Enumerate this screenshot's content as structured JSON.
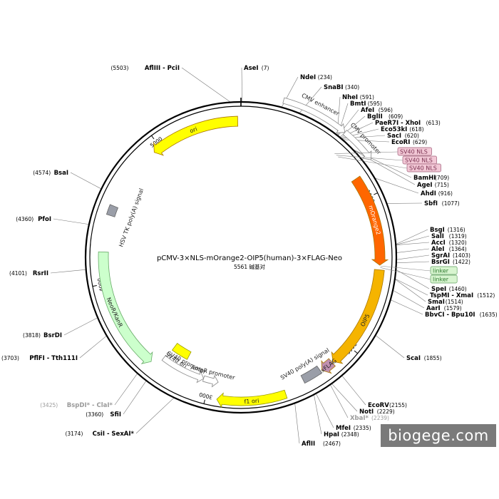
{
  "center": {
    "title": "pCMV-3×NLS-mOrange2-OIP5(human)-3×FLAG-Neo",
    "size": "5561 碱基对"
  },
  "total_bp": 5561,
  "ticks": [
    {
      "bp": 1000,
      "label": "1000"
    },
    {
      "bp": 2000,
      "label": "2000"
    },
    {
      "bp": 3000,
      "label": "3000"
    },
    {
      "bp": 4000,
      "label": "4000"
    },
    {
      "bp": 5000,
      "label": "5000"
    }
  ],
  "features": [
    {
      "id": "cmv-enhancer",
      "label": "CMV enhancer",
      "start": 235,
      "end": 614,
      "style": "open",
      "color": "#ffffff"
    },
    {
      "id": "cmv-promoter",
      "label": "CMV promoter",
      "start": 614,
      "end": 820,
      "style": "open",
      "color": "#ffffff"
    },
    {
      "id": "morange2",
      "label": "mOrange2",
      "start": 860,
      "end": 1440,
      "style": "arrow",
      "color": "#ff6600"
    },
    {
      "id": "oip5",
      "label": "OIP5",
      "start": 1470,
      "end": 2140,
      "style": "arrow",
      "color": "#f5b400"
    },
    {
      "id": "3xflag",
      "label": "3xFLAG",
      "start": 2148,
      "end": 2230,
      "style": "arrow",
      "color": "#c090b0"
    },
    {
      "id": "sv40-polya",
      "label": "SV40 poly(A) signal",
      "start": 2240,
      "end": 2365,
      "style": "box",
      "color": "#9a9ea8"
    },
    {
      "id": "f1-ori",
      "label": "f1 ori",
      "start": 2500,
      "end": 2930,
      "style": "arrow",
      "color": "#ffff00"
    },
    {
      "id": "ampr-promoter",
      "label": "AmpR promoter",
      "start": 2940,
      "end": 3045,
      "style": "open-rev",
      "color": "#ffffff"
    },
    {
      "id": "sv40-promoter",
      "label": "SV40 promoter",
      "start": 3045,
      "end": 3360,
      "style": "open-rev",
      "color": "#ffffff"
    },
    {
      "id": "sv40-ori",
      "label": "SV40 ori",
      "start": 3210,
      "end": 3345,
      "style": "box",
      "color": "#ffff00"
    },
    {
      "id": "neo-kanr",
      "label": "NeoR/KanR",
      "start": 3410,
      "end": 4205,
      "style": "arrow",
      "color": "#ccffcc"
    },
    {
      "id": "hsv-tk-polya",
      "label": "HSV TK poly(A) signal",
      "start": 4445,
      "end": 4510,
      "style": "box",
      "color": "#9a9ea8"
    },
    {
      "id": "ori",
      "label": "ori",
      "start": 4950,
      "end": 5540,
      "style": "arrow",
      "color": "#ffff00"
    }
  ],
  "sites": [
    {
      "name": "AflIII - PciI",
      "pos": "(5503)",
      "side": "left",
      "dim": false
    },
    {
      "name": "AseI",
      "pos": "(7)",
      "side": "right",
      "dim": false
    },
    {
      "name": "NdeI",
      "pos": "(234)",
      "side": "right",
      "dim": false
    },
    {
      "name": "SnaBI",
      "pos": "(340)",
      "side": "right",
      "dim": false
    },
    {
      "name": "NheI",
      "pos": "(591)",
      "side": "right",
      "dim": false
    },
    {
      "name": "BmtI",
      "pos": "(595)",
      "side": "right",
      "dim": false
    },
    {
      "name": "AfeI",
      "pos": "(596)",
      "side": "right",
      "dim": false
    },
    {
      "name": "BglII",
      "pos": "(609)",
      "side": "right",
      "dim": false
    },
    {
      "name": "PaeR7I - XhoI",
      "pos": "(613)",
      "side": "right",
      "dim": false
    },
    {
      "name": "Eco53kI",
      "pos": "(618)",
      "side": "right",
      "dim": false
    },
    {
      "name": "SacI",
      "pos": "(620)",
      "side": "right",
      "dim": false
    },
    {
      "name": "EcoRI",
      "pos": "(629)",
      "side": "right",
      "dim": false
    },
    {
      "name": "BamHI",
      "pos": "(709)",
      "side": "right",
      "dim": false
    },
    {
      "name": "AgeI",
      "pos": "(715)",
      "side": "right",
      "dim": false
    },
    {
      "name": "AhdI",
      "pos": "(916)",
      "side": "right",
      "dim": false
    },
    {
      "name": "SbfI",
      "pos": "(1077)",
      "side": "right",
      "dim": false
    },
    {
      "name": "BsgI",
      "pos": "(1316)",
      "side": "right",
      "dim": false
    },
    {
      "name": "SalI",
      "pos": "(1319)",
      "side": "right",
      "dim": false
    },
    {
      "name": "AccI",
      "pos": "(1320)",
      "side": "right",
      "dim": false
    },
    {
      "name": "AleI",
      "pos": "(1364)",
      "side": "right",
      "dim": false
    },
    {
      "name": "SgrAI",
      "pos": "(1403)",
      "side": "right",
      "dim": false
    },
    {
      "name": "BsrGI",
      "pos": "(1422)",
      "side": "right",
      "dim": false
    },
    {
      "name": "SpeI",
      "pos": "(1460)",
      "side": "right",
      "dim": false
    },
    {
      "name": "TspMI - XmaI",
      "pos": "(1512)",
      "side": "right",
      "dim": false
    },
    {
      "name": "SmaI",
      "pos": "(1514)",
      "side": "right",
      "dim": false
    },
    {
      "name": "AarI",
      "pos": "(1579)",
      "side": "right",
      "dim": false
    },
    {
      "name": "BbvCI - Bpu10I",
      "pos": "(1635)",
      "side": "right",
      "dim": false
    },
    {
      "name": "ScaI",
      "pos": "(1855)",
      "side": "right",
      "dim": false
    },
    {
      "name": "EcoRV",
      "pos": "(2155)",
      "side": "right",
      "dim": false
    },
    {
      "name": "NotI",
      "pos": "(2229)",
      "side": "right",
      "dim": false
    },
    {
      "name": "XbaI*",
      "pos": "(2239)",
      "side": "right",
      "dim": true
    },
    {
      "name": "MfeI",
      "pos": "(2335)",
      "side": "right",
      "dim": false
    },
    {
      "name": "HpaI",
      "pos": "(2348)",
      "side": "right",
      "dim": false
    },
    {
      "name": "AflII",
      "pos": "(2467)",
      "side": "right",
      "dim": false
    },
    {
      "name": "CsiI - SexAI*",
      "pos": "(3174)",
      "side": "left",
      "dim": false
    },
    {
      "name": "SfiI",
      "pos": "(3360)",
      "side": "left",
      "dim": false
    },
    {
      "name": "BspDI* - ClaI*",
      "pos": "(3425)",
      "side": "left",
      "dim": true
    },
    {
      "name": "PflFI - Tth111I",
      "pos": "(3703)",
      "side": "left",
      "dim": false
    },
    {
      "name": "BsrDI",
      "pos": "(3818)",
      "side": "left",
      "dim": false
    },
    {
      "name": "RsrII",
      "pos": "(4101)",
      "side": "left",
      "dim": false
    },
    {
      "name": "PfoI",
      "pos": "(4360)",
      "side": "left",
      "dim": false
    },
    {
      "name": "BsaI",
      "pos": "(4574)",
      "side": "left",
      "dim": false
    }
  ],
  "tags": [
    {
      "label": "SV40 NLS",
      "kind": "nls"
    },
    {
      "label": "SV40 NLS",
      "kind": "nls"
    },
    {
      "label": "SV40 NLS",
      "kind": "nls"
    },
    {
      "label": "linker",
      "kind": "linker"
    },
    {
      "label": "linker",
      "kind": "linker"
    }
  ],
  "colors": {
    "nls_fill": "#f2c8d6",
    "nls_stroke": "#a0607a",
    "linker_fill": "#d8f5d0",
    "linker_stroke": "#60a060",
    "backbone": "#000000"
  },
  "watermark": "biogege.com"
}
